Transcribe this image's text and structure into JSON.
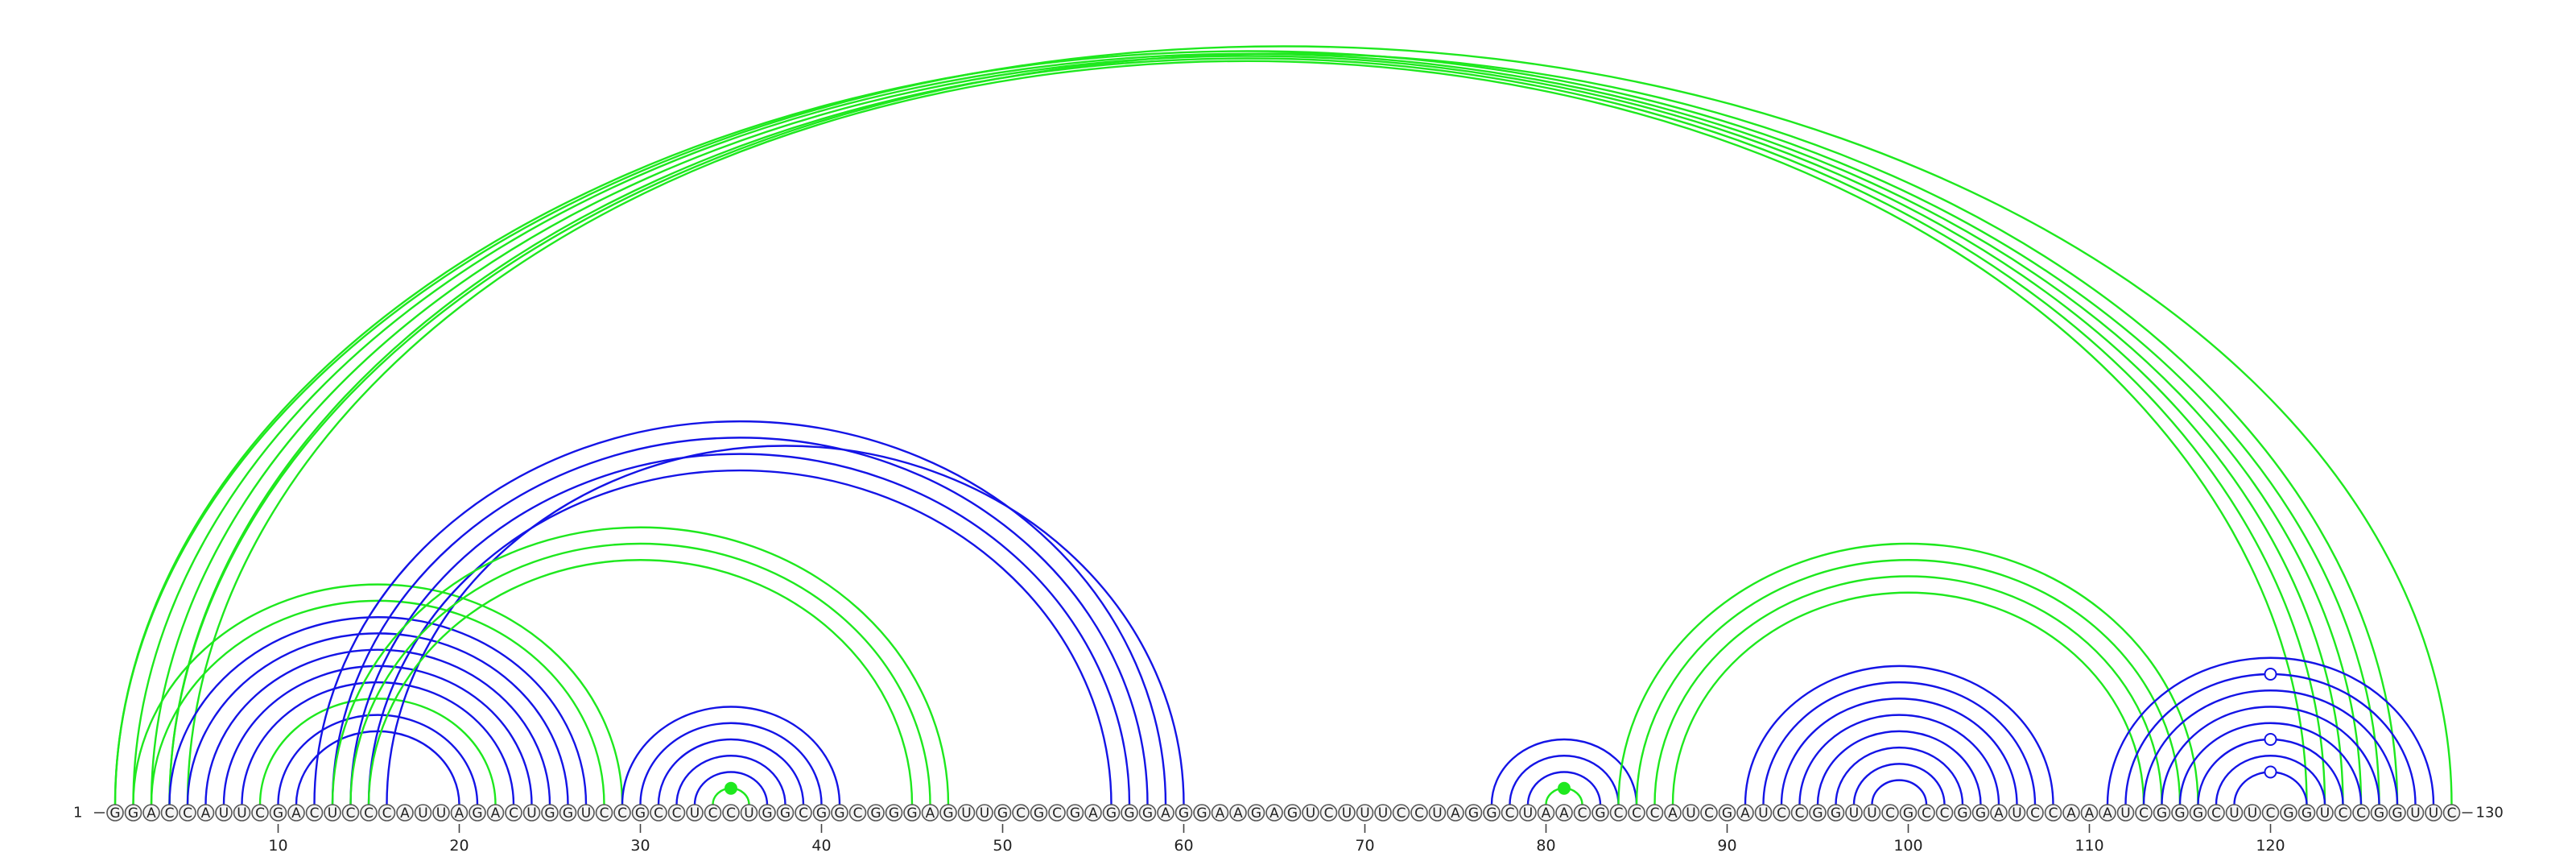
{
  "diagram": {
    "sequence": "GGACCAUUCGACUCCCAUUAGACUGGUCCGCCUCCUGGCGGCGGGAGUUGCGCGAGGGAGGAAGAGUCUUUCCUAGGCUAACGCCCAUCGAUCCGGUUCGCCGGAUCCAAAUCGGGCUUCGGUCCGGUUC",
    "start_label": "1",
    "end_label": "130",
    "ticks": [
      10,
      20,
      30,
      40,
      50,
      60,
      70,
      80,
      90,
      100,
      110,
      120
    ],
    "colors": {
      "green": "#1ee81e",
      "blue": "#1414e6"
    },
    "arcs": [
      {
        "i": 1,
        "j": 126,
        "color": "green"
      },
      {
        "i": 2,
        "j": 125,
        "color": "green"
      },
      {
        "i": 3,
        "j": 124,
        "color": "green"
      },
      {
        "i": 4,
        "j": 123,
        "color": "green"
      },
      {
        "i": 5,
        "j": 122,
        "color": "green"
      },
      {
        "i": 1,
        "j": 130,
        "color": "green"
      },
      {
        "i": 4,
        "j": 127,
        "color": "green"
      },
      {
        "i": 2,
        "j": 29,
        "color": "green"
      },
      {
        "i": 3,
        "j": 28,
        "color": "green"
      },
      {
        "i": 4,
        "j": 27,
        "color": "blue"
      },
      {
        "i": 5,
        "j": 26,
        "color": "blue"
      },
      {
        "i": 6,
        "j": 25,
        "color": "blue"
      },
      {
        "i": 7,
        "j": 24,
        "color": "blue"
      },
      {
        "i": 8,
        "j": 23,
        "color": "blue"
      },
      {
        "i": 9,
        "j": 22,
        "color": "green"
      },
      {
        "i": 10,
        "j": 21,
        "color": "blue"
      },
      {
        "i": 11,
        "j": 20,
        "color": "blue"
      },
      {
        "i": 12,
        "j": 59,
        "color": "blue"
      },
      {
        "i": 13,
        "j": 58,
        "color": "blue"
      },
      {
        "i": 14,
        "j": 57,
        "color": "blue"
      },
      {
        "i": 15,
        "j": 56,
        "color": "blue"
      },
      {
        "i": 16,
        "j": 60,
        "color": "blue"
      },
      {
        "i": 13,
        "j": 47,
        "color": "green"
      },
      {
        "i": 14,
        "j": 46,
        "color": "green"
      },
      {
        "i": 15,
        "j": 45,
        "color": "green"
      },
      {
        "i": 29,
        "j": 41,
        "color": "blue"
      },
      {
        "i": 30,
        "j": 40,
        "color": "blue"
      },
      {
        "i": 31,
        "j": 39,
        "color": "blue"
      },
      {
        "i": 32,
        "j": 38,
        "color": "blue"
      },
      {
        "i": 33,
        "j": 37,
        "color": "blue"
      },
      {
        "i": 34,
        "j": 36,
        "color": "green",
        "marker": "filled"
      },
      {
        "i": 77,
        "j": 85,
        "color": "blue"
      },
      {
        "i": 78,
        "j": 84,
        "color": "blue"
      },
      {
        "i": 79,
        "j": 83,
        "color": "blue"
      },
      {
        "i": 80,
        "j": 82,
        "color": "green",
        "marker": "filled"
      },
      {
        "i": 84,
        "j": 116,
        "color": "green"
      },
      {
        "i": 85,
        "j": 115,
        "color": "green"
      },
      {
        "i": 86,
        "j": 114,
        "color": "green"
      },
      {
        "i": 87,
        "j": 113,
        "color": "green"
      },
      {
        "i": 91,
        "j": 108,
        "color": "blue"
      },
      {
        "i": 92,
        "j": 107,
        "color": "blue"
      },
      {
        "i": 93,
        "j": 106,
        "color": "blue"
      },
      {
        "i": 94,
        "j": 105,
        "color": "blue"
      },
      {
        "i": 95,
        "j": 104,
        "color": "blue"
      },
      {
        "i": 96,
        "j": 103,
        "color": "blue"
      },
      {
        "i": 97,
        "j": 102,
        "color": "blue"
      },
      {
        "i": 98,
        "j": 101,
        "color": "blue"
      },
      {
        "i": 111,
        "j": 129,
        "color": "blue"
      },
      {
        "i": 112,
        "j": 128,
        "color": "blue",
        "marker": "open"
      },
      {
        "i": 113,
        "j": 127,
        "color": "blue"
      },
      {
        "i": 114,
        "j": 126,
        "color": "blue"
      },
      {
        "i": 115,
        "j": 125,
        "color": "blue"
      },
      {
        "i": 116,
        "j": 124,
        "color": "blue",
        "marker": "open"
      },
      {
        "i": 117,
        "j": 123,
        "color": "blue"
      },
      {
        "i": 118,
        "j": 122,
        "color": "blue",
        "marker": "open"
      }
    ]
  }
}
